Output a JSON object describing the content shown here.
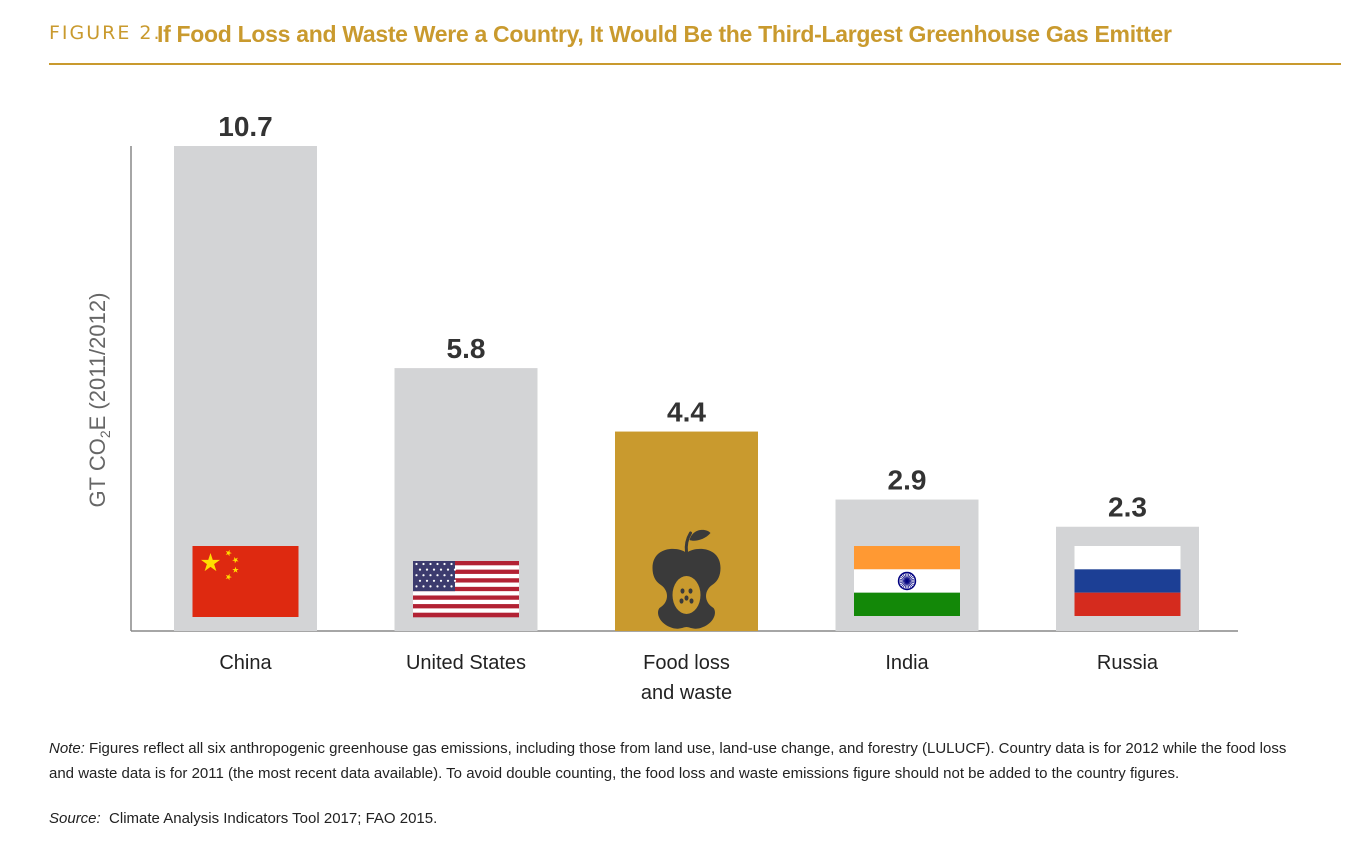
{
  "figure": {
    "label": "FIGURE 2.",
    "title": "If Food Loss and Waste Were a Country, It Would Be the Third-Largest Greenhouse Gas Emitter"
  },
  "colors": {
    "accent": "#c99a2e",
    "bar_gray": "#d3d4d6",
    "highlight_bar": "#c99a2e",
    "axis": "#888888",
    "value_label": "#333333",
    "category_label": "#222222",
    "icon_dark": "#3a3a3a"
  },
  "chart_data": {
    "type": "bar",
    "categories": [
      "China",
      "United States",
      "Food loss and waste",
      "India",
      "Russia"
    ],
    "values": [
      10.7,
      5.8,
      4.4,
      2.9,
      2.3
    ],
    "value_labels": [
      "10.7",
      "5.8",
      "4.4",
      "2.9",
      "2.3"
    ],
    "category_lines": [
      [
        "China"
      ],
      [
        "United States"
      ],
      [
        "Food loss",
        "and waste"
      ],
      [
        "India"
      ],
      [
        "Russia"
      ]
    ],
    "icons": [
      "china-flag-icon",
      "usa-flag-icon",
      "apple-core-icon",
      "india-flag-icon",
      "russia-flag-icon"
    ],
    "highlight_index": 2,
    "ylabel": "GT CO₂E (2011/2012)",
    "ylim": [
      0,
      10.7
    ],
    "grid": false
  },
  "ylabel": {
    "pre": "GT CO",
    "sub": "2",
    "post": "E (2011/2012)"
  },
  "note": {
    "label": "Note:",
    "text": "Figures reflect all six anthropogenic greenhouse gas emissions, including those from land use, land-use change, and forestry (LULUCF).  Country data is for 2012 while the food loss and waste data is for 2011 (the most recent data available). To avoid double counting, the food loss and waste emissions figure should not be added to the country figures."
  },
  "source": {
    "label": "Source:",
    "text": "Climate Analysis Indicators Tool 2017; FAO 2015."
  }
}
